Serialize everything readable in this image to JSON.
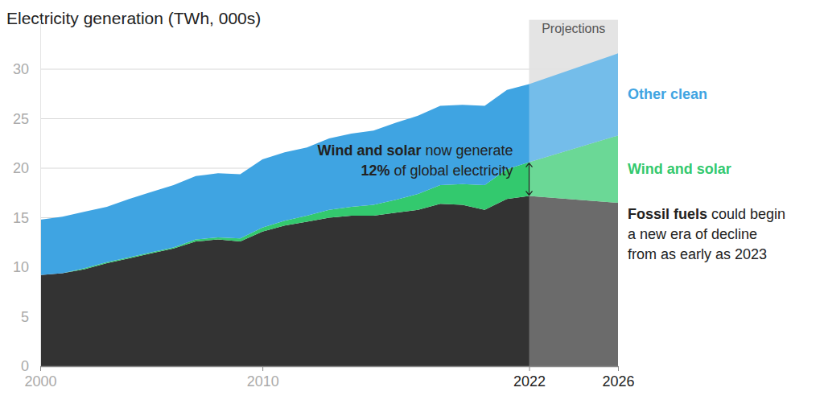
{
  "chart_data": {
    "type": "area",
    "title": "Electricity generation (TWh, 000s)",
    "stacked": true,
    "grid": true,
    "x": [
      2000,
      2001,
      2002,
      2003,
      2004,
      2005,
      2006,
      2007,
      2008,
      2009,
      2010,
      2011,
      2012,
      2013,
      2014,
      2015,
      2016,
      2017,
      2018,
      2019,
      2020,
      2021,
      2022,
      2026
    ],
    "xlim": [
      2000,
      2026
    ],
    "xticks": [
      2000,
      2010,
      2022,
      2026
    ],
    "ylim": [
      0,
      35
    ],
    "yticks": [
      0,
      5,
      10,
      15,
      20,
      25,
      30
    ],
    "series": [
      {
        "name": "Fossil fuels",
        "color": "#333333",
        "values": [
          9.2,
          9.4,
          9.8,
          10.4,
          10.9,
          11.4,
          11.9,
          12.6,
          12.8,
          12.6,
          13.6,
          14.2,
          14.6,
          15.0,
          15.2,
          15.2,
          15.5,
          15.8,
          16.4,
          16.3,
          15.8,
          16.9,
          17.2,
          16.5
        ],
        "note": [
          "could begin",
          "a new era of decline",
          "from as early as 2023"
        ]
      },
      {
        "name": "Wind and solar",
        "color": "#33c96e",
        "values": [
          0.0,
          0.0,
          0.1,
          0.1,
          0.1,
          0.1,
          0.1,
          0.2,
          0.2,
          0.3,
          0.4,
          0.5,
          0.6,
          0.8,
          0.9,
          1.1,
          1.3,
          1.6,
          1.9,
          2.1,
          2.5,
          3.0,
          3.4,
          6.8
        ]
      },
      {
        "name": "Other clean",
        "color": "#3fa4e2",
        "values": [
          5.6,
          5.7,
          5.7,
          5.6,
          5.9,
          6.1,
          6.3,
          6.4,
          6.5,
          6.5,
          6.9,
          6.9,
          6.9,
          7.2,
          7.4,
          7.5,
          7.8,
          7.9,
          8.0,
          8.0,
          8.0,
          8.0,
          7.9,
          8.3
        ]
      }
    ],
    "shaded_region": {
      "label": "Projections",
      "x": [
        2022,
        2026
      ]
    },
    "annotations": [
      {
        "lines": [
          [
            "Wind and solar",
            "now generate"
          ],
          [
            "12%",
            "of global electricity"
          ]
        ],
        "x": 2022
      }
    ]
  }
}
